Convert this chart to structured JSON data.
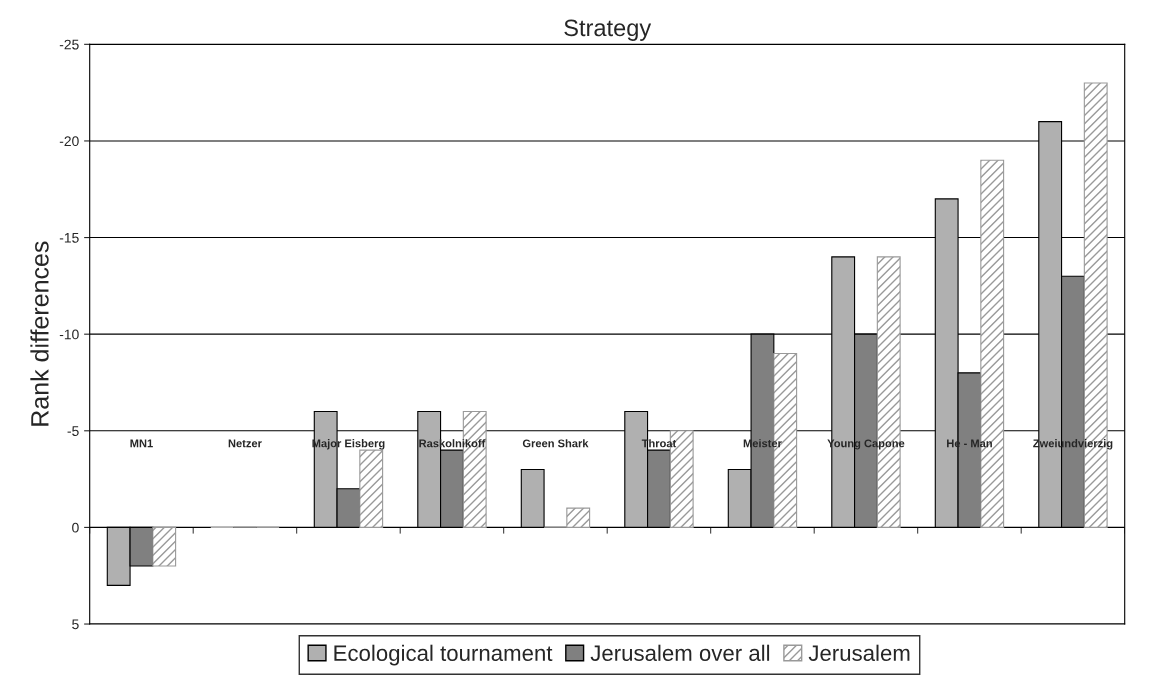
{
  "chart_data": {
    "type": "bar",
    "title": "Strategy",
    "ylabel": "Rank differences",
    "categories": [
      "MN1",
      "Netzer",
      "Major Eisberg",
      "Raskolnikoff",
      "Green Shark",
      "Throat",
      "Meister",
      "Young Capone",
      "He - Man",
      "Zweiundvierzig"
    ],
    "series": [
      {
        "name": "Ecological tournament",
        "color": "#b0b0b0",
        "values": [
          3,
          0,
          -6,
          -6,
          -3,
          -6,
          -3,
          -14,
          -17,
          -21
        ]
      },
      {
        "name": "Jerusalem over all",
        "color": "#808080",
        "values": [
          2,
          0,
          -2,
          -4,
          0,
          -4,
          -10,
          -10,
          -8,
          -13
        ]
      },
      {
        "name": "Jerusalem",
        "color": "#999999",
        "values": [
          2,
          0,
          -4,
          -6,
          -1,
          -5,
          -9,
          -14,
          -19,
          -23
        ]
      }
    ],
    "ylim": [
      5,
      -25
    ],
    "yticks": [
      5,
      0,
      -5,
      -10,
      -15,
      -20,
      -25
    ],
    "grid": "y",
    "legend": "bottom"
  }
}
